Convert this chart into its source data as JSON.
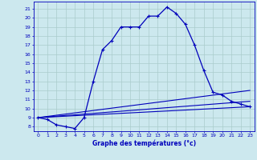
{
  "xlabel": "Graphe des températures (°c)",
  "xlim": [
    -0.5,
    23.5
  ],
  "ylim": [
    7.5,
    21.8
  ],
  "xticks": [
    0,
    1,
    2,
    3,
    4,
    5,
    6,
    7,
    8,
    9,
    10,
    11,
    12,
    13,
    14,
    15,
    16,
    17,
    18,
    19,
    20,
    21,
    22,
    23
  ],
  "yticks": [
    8,
    9,
    10,
    11,
    12,
    13,
    14,
    15,
    16,
    17,
    18,
    19,
    20,
    21
  ],
  "background_color": "#cce8ee",
  "grid_color": "#aacccc",
  "line_color": "#0000bb",
  "main_series": {
    "x": [
      0,
      1,
      2,
      3,
      4,
      5,
      6,
      7,
      8,
      9,
      10,
      11,
      12,
      13,
      14,
      15,
      16,
      17,
      18,
      19,
      20,
      21,
      22,
      23
    ],
    "y": [
      9.0,
      8.8,
      8.2,
      8.0,
      7.8,
      9.0,
      13.0,
      16.5,
      17.5,
      19.0,
      19.0,
      19.0,
      20.2,
      20.2,
      21.2,
      20.5,
      19.3,
      17.0,
      14.2,
      11.8,
      11.5,
      10.8,
      10.5,
      10.2
    ]
  },
  "straight_lines": [
    {
      "x": [
        0,
        23
      ],
      "y": [
        9.0,
        10.2
      ]
    },
    {
      "x": [
        0,
        23
      ],
      "y": [
        9.0,
        10.8
      ]
    },
    {
      "x": [
        0,
        23
      ],
      "y": [
        9.0,
        12.0
      ]
    }
  ]
}
